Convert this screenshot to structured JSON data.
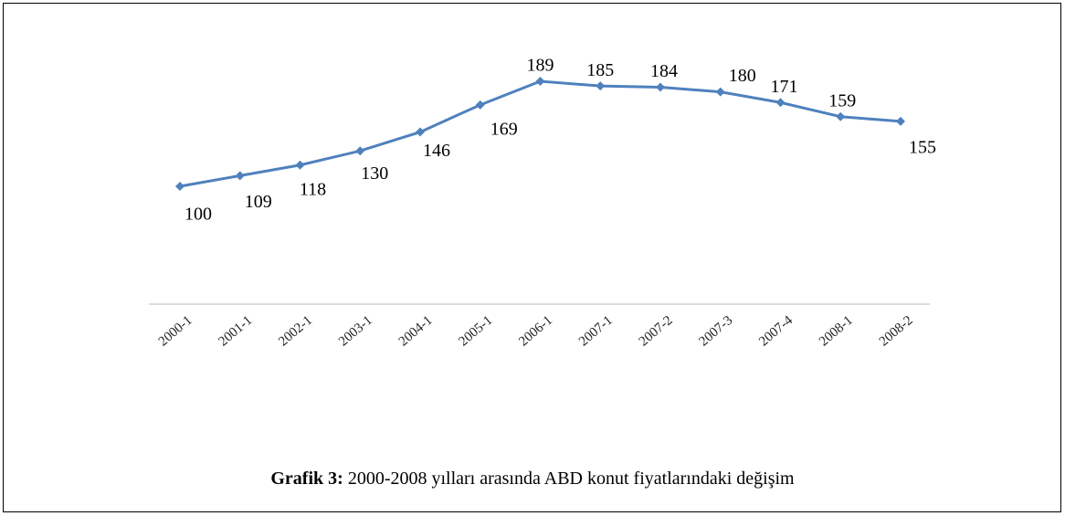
{
  "chart_data": {
    "type": "line",
    "categories": [
      "2000-1",
      "2001-1",
      "2002-1",
      "2003-1",
      "2004-1",
      "2005-1",
      "2006-1",
      "2007-1",
      "2007-2",
      "2007-3",
      "2007-4",
      "2008-1",
      "2008-2"
    ],
    "series": [
      {
        "color": "#4f81bd",
        "values": [
          100,
          109,
          118,
          130,
          146,
          169,
          189,
          185,
          184,
          180,
          171,
          159,
          155
        ]
      }
    ],
    "caption": {
      "label": "Grafik 3:",
      "text": "2000-2008 yılları arasında ABD konut fiyatlarındaki değişim"
    }
  }
}
